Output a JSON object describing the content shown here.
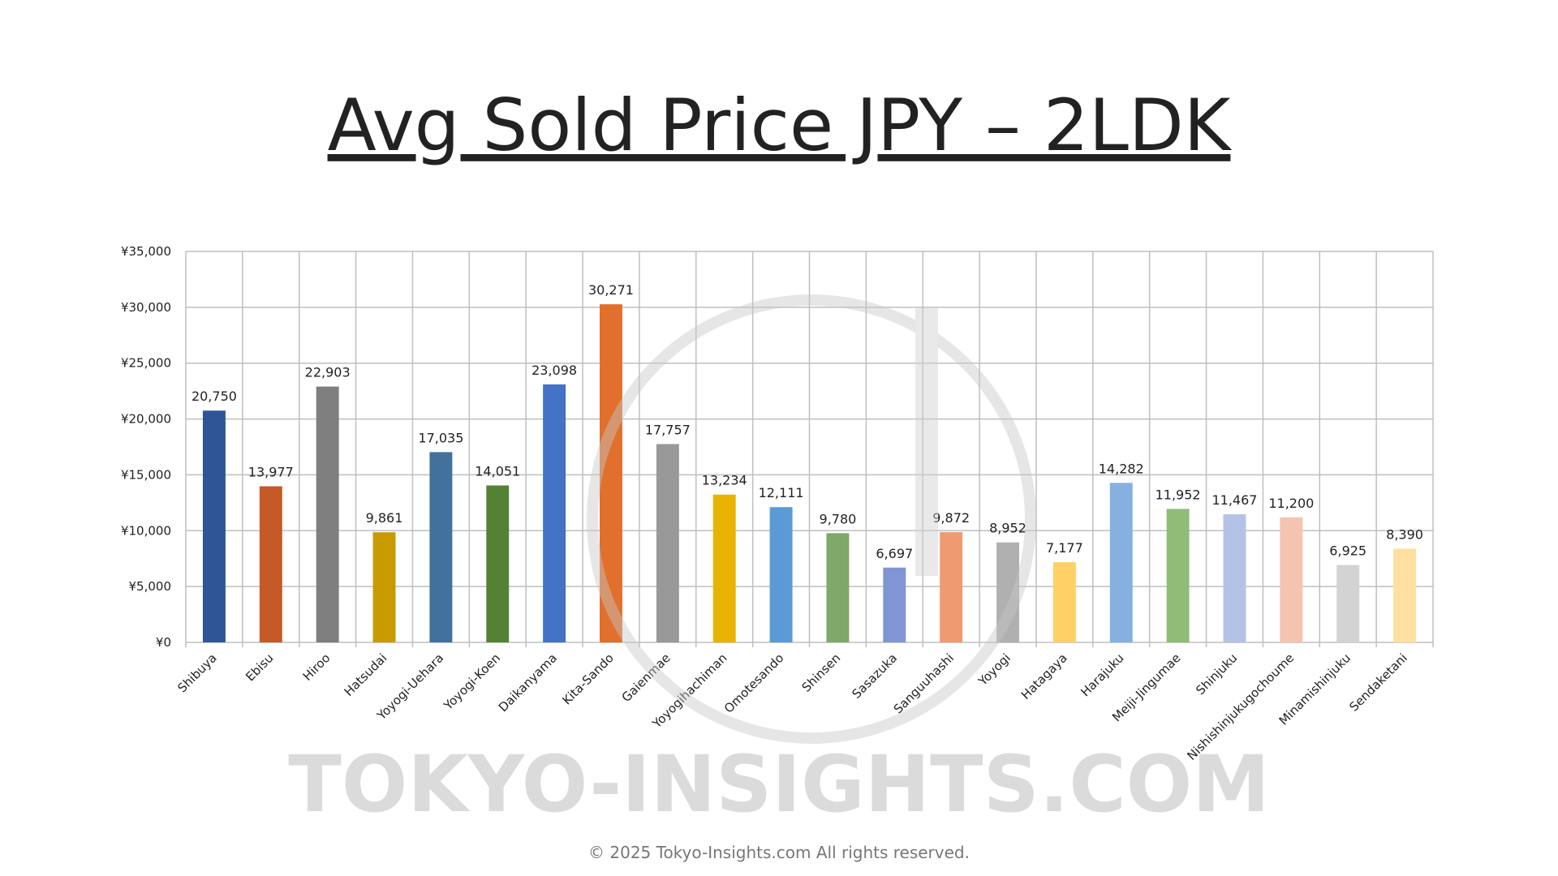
{
  "chart_data": {
    "type": "bar",
    "title": "Avg Sold Price JPY – 2LDK",
    "categories": [
      "Shibuya",
      "Ebisu",
      "Hiroo",
      "Hatsudai",
      "Yoyogi-Uehara",
      "Yoyogi-Koen",
      "Daikanyama",
      "Kita-Sando",
      "Gaienmae",
      "Yoyogihachiman",
      "Omotesando",
      "Shinsen",
      "Sasazuka",
      "Sanguuhashi",
      "Yoyogi",
      "Hatagaya",
      "Harajuku",
      "Meiji-Jingumae",
      "Shinjuku",
      "Nishishinjukugochoume",
      "Minamishinjuku",
      "Sendaketani"
    ],
    "values": [
      20750,
      13977,
      22903,
      9861,
      17035,
      14051,
      23098,
      30271,
      17757,
      13234,
      12111,
      9780,
      6697,
      9872,
      8952,
      7177,
      14282,
      11952,
      11467,
      11200,
      6925,
      8390
    ],
    "value_labels": [
      "20,750",
      "13,977",
      "22,903",
      "9,861",
      "17,035",
      "14,051",
      "23,098",
      "30,271",
      "17,757",
      "13,234",
      "12,111",
      "9,780",
      "6,697",
      "9,872",
      "8,952",
      "7,177",
      "14,282",
      "11,952",
      "11,467",
      "11,200",
      "6,925",
      "8,390"
    ],
    "colors": [
      "#2f5597",
      "#c55a28",
      "#7f7f7f",
      "#c99a00",
      "#41719c",
      "#548235",
      "#4472c4",
      "#e0702c",
      "#999999",
      "#e8b400",
      "#5b9bd5",
      "#7fa86a",
      "#8095d4",
      "#f09a72",
      "#b0b0b0",
      "#ffd066",
      "#86b0e0",
      "#90bc78",
      "#b4c2e6",
      "#f4c4b0",
      "#d3d3d3",
      "#ffe0a0"
    ],
    "ylim": [
      0,
      35000
    ],
    "yticks": [
      {
        "value": 0,
        "label": "¥0"
      },
      {
        "value": 5000,
        "label": "¥5,000"
      },
      {
        "value": 10000,
        "label": "¥10,000"
      },
      {
        "value": 15000,
        "label": "¥15,000"
      },
      {
        "value": 20000,
        "label": "¥20,000"
      },
      {
        "value": 25000,
        "label": "¥25,000"
      },
      {
        "value": 30000,
        "label": "¥30,000"
      },
      {
        "value": 35000,
        "label": "¥35,000"
      }
    ],
    "grid": true
  },
  "watermark": "TOKYO-INSIGHTS.COM",
  "copyright": "© 2025 Tokyo-Insights.com All rights reserved."
}
